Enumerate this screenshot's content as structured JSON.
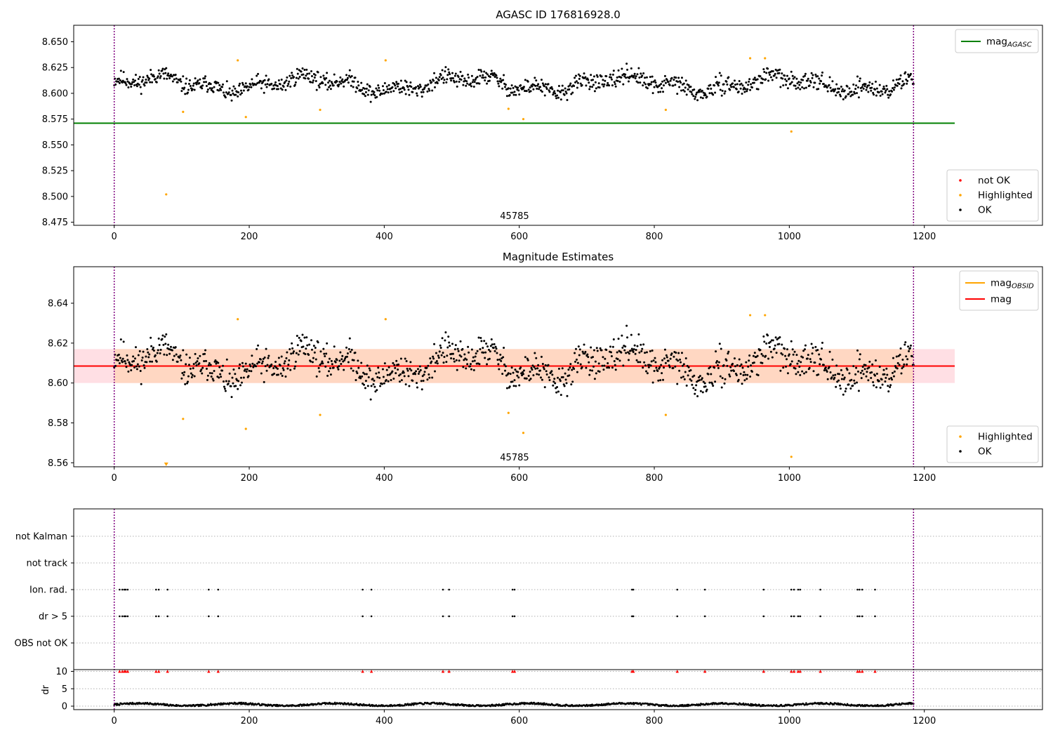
{
  "chart_data": [
    {
      "type": "scatter",
      "title": "AGASC ID 176816928.0",
      "xlim": [
        -60,
        1375
      ],
      "ylim": [
        8.472,
        8.666
      ],
      "xticks": [
        0,
        200,
        400,
        600,
        800,
        1000,
        1200
      ],
      "yticks": [
        8.475,
        8.5,
        8.525,
        8.55,
        8.575,
        8.6,
        8.625,
        8.65
      ],
      "ytick_decimals": 3,
      "obsid_label": "45785",
      "obsid_label_x": 593,
      "vlines": [
        0,
        1184
      ],
      "hline": {
        "y": 8.571,
        "x0": -60,
        "x1": 1245,
        "color": "#008000"
      },
      "series_ok": {
        "name": "OK",
        "color": "#000000",
        "n": 1185,
        "center": 8.609,
        "spread": 0.008,
        "seed": 11
      },
      "series_highlighted": {
        "name": "Highlighted",
        "color": "#ffa500",
        "x": [
          77,
          102,
          183,
          195,
          305,
          402,
          584,
          606,
          817,
          942,
          964,
          1003
        ],
        "y": [
          8.502,
          8.582,
          8.632,
          8.577,
          8.584,
          8.632,
          8.585,
          8.575,
          8.584,
          8.634,
          8.634,
          8.563
        ]
      },
      "legend_lines": [
        {
          "label": "mag",
          "sub": "AGASC",
          "color": "#008000"
        }
      ],
      "legend_markers": [
        {
          "label": "not OK",
          "color": "#ff0000"
        },
        {
          "label": "Highlighted",
          "color": "#ffa500"
        },
        {
          "label": "OK",
          "color": "#000000"
        }
      ]
    },
    {
      "type": "scatter",
      "title": "Magnitude Estimates",
      "xlim": [
        -60,
        1375
      ],
      "ylim": [
        8.558,
        8.6583
      ],
      "xticks": [
        0,
        200,
        400,
        600,
        800,
        1000,
        1200
      ],
      "yticks": [
        8.56,
        8.58,
        8.6,
        8.62,
        8.64
      ],
      "ytick_decimals": 2,
      "obsid_label": "45785",
      "obsid_label_x": 593,
      "vlines": [
        0,
        1184
      ],
      "mag_line": {
        "y": 8.6085,
        "x0": -60,
        "x1": 1245,
        "color": "#ff0000"
      },
      "mag_band": {
        "y0": 8.6,
        "y1": 8.617,
        "x0": -60,
        "x1": 1245,
        "color": "#ffdfe4"
      },
      "obsid_band": {
        "y0": 8.6,
        "y1": 8.617,
        "x0": 0,
        "x1": 1184,
        "color": "#ffd7c2"
      },
      "series_ok": {
        "name": "OK",
        "color": "#000000",
        "n": 1185,
        "center": 8.609,
        "spread": 0.008,
        "seed": 11
      },
      "series_highlighted": {
        "name": "Highlighted",
        "color": "#ffa500",
        "x": [
          102,
          183,
          195,
          305,
          402,
          584,
          606,
          817,
          942,
          964,
          1003
        ],
        "y": [
          8.582,
          8.632,
          8.577,
          8.584,
          8.632,
          8.585,
          8.575,
          8.584,
          8.634,
          8.634,
          8.563
        ]
      },
      "offscale_marker": {
        "x": 77,
        "color": "#ffa500"
      },
      "legend_lines": [
        {
          "label": "mag",
          "sub": "OBSID",
          "color": "#ffa500"
        },
        {
          "label": "mag",
          "sub": "",
          "color": "#ff0000"
        }
      ],
      "legend_markers": [
        {
          "label": "Highlighted",
          "color": "#ffa500"
        },
        {
          "label": "OK",
          "color": "#000000"
        }
      ]
    },
    {
      "type": "scatter",
      "title": "",
      "xlim": [
        -60,
        1375
      ],
      "flag_rows": [
        "not Kalman",
        "not track",
        "Ion. rad.",
        "dr > 5",
        "OBS not OK"
      ],
      "flag_events_x": [
        8,
        12,
        15,
        17,
        20,
        62,
        66,
        79,
        140,
        154,
        368,
        381,
        487,
        496,
        590,
        593,
        767,
        769,
        834,
        875,
        962,
        1003,
        1007,
        1013,
        1016,
        1046,
        1101,
        1104,
        1108,
        1127
      ],
      "flag_event_rows": [
        "Ion. rad.",
        "dr > 5"
      ],
      "vlines": [
        0,
        1184
      ],
      "dr_ylabel": "dr",
      "dr_yticks": [
        0,
        5,
        10
      ],
      "dr_ylim": [
        -1,
        10.5
      ],
      "dr_clip_marker_y": 10,
      "dr_clip_color": "#ff0000",
      "dr_series": {
        "n": 1185,
        "base": 0.45,
        "spread": 0.25,
        "seed": 7
      },
      "xticks": [
        0,
        200,
        400,
        600,
        800,
        1000,
        1200
      ]
    }
  ]
}
